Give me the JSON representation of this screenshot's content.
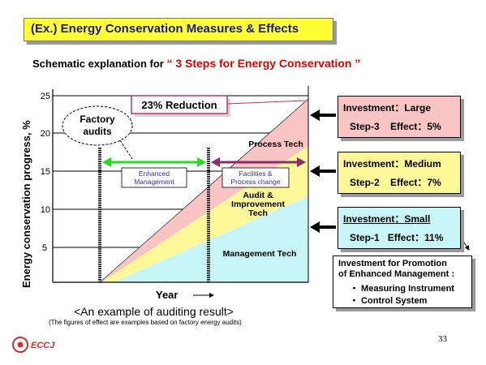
{
  "title": "(Ex.) Energy Conservation Measures & Effects",
  "subtitle": {
    "prefix": "Schematic explanation  for ",
    "highlight": "“ 3 Steps for Energy Conservation ”"
  },
  "chart": {
    "ylabel": "Energy conservation progress,  %",
    "xlabel": "Year",
    "y_ticks": [
      "25",
      "20",
      "15",
      "10",
      "5"
    ],
    "reduction_label": "23% Reduction",
    "factory_audits_label": [
      "Factory",
      "audits"
    ],
    "enhanced_management_label": [
      "Enhanced",
      "Management"
    ],
    "facilities_change_label": [
      "Facilities &",
      "Process change"
    ],
    "process_tech_label": "Process Tech",
    "audit_label": [
      "Audit &",
      "Improvement",
      "Tech"
    ],
    "management_tech_label": "Management Tech"
  },
  "chart_data": {
    "type": "area",
    "ylabel": "Energy conservation progress,  %",
    "xlabel": "Year",
    "ylim": [
      0,
      25
    ],
    "y_ticks": [
      5,
      10,
      15,
      20,
      25
    ],
    "series": [
      {
        "name": "Management Tech",
        "points": [
          [
            0,
            0
          ],
          [
            1,
            11
          ]
        ]
      },
      {
        "name": "Audit & Improvement Tech",
        "points": [
          [
            0,
            0
          ],
          [
            1,
            18
          ]
        ]
      },
      {
        "name": "Process Tech",
        "points": [
          [
            0,
            0
          ],
          [
            1,
            23
          ]
        ]
      }
    ],
    "total_reduction_percent": 23
  },
  "steps": [
    {
      "investment": "Investment：Large",
      "step": "Step-3",
      "effect": "Effect：5%",
      "color": "#f9c4c4"
    },
    {
      "investment": "Investment：Medium",
      "step": "Step-2",
      "effect": "Effect：7%",
      "color": "#fff898"
    },
    {
      "investment": "Investment：Small",
      "step": "Step-1",
      "effect": "Effect：11%",
      "color": "#c8f6f8"
    }
  ],
  "promotion": {
    "title": [
      "Investment for Promotion",
      "of Enhanced Management :"
    ],
    "items": [
      "・ Measuring Instrument",
      "・ Control System"
    ]
  },
  "caption": "<An example of auditing result>",
  "note": "(The figures of effect are examples based on factory energy audits)",
  "page_number": "33",
  "logo": "ECCJ"
}
